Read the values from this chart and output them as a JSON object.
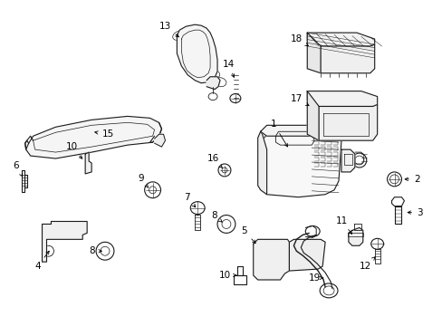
{
  "background_color": "#ffffff",
  "line_color": "#1a1a1a",
  "text_color": "#000000",
  "fig_w": 4.89,
  "fig_h": 3.6,
  "dpi": 100
}
